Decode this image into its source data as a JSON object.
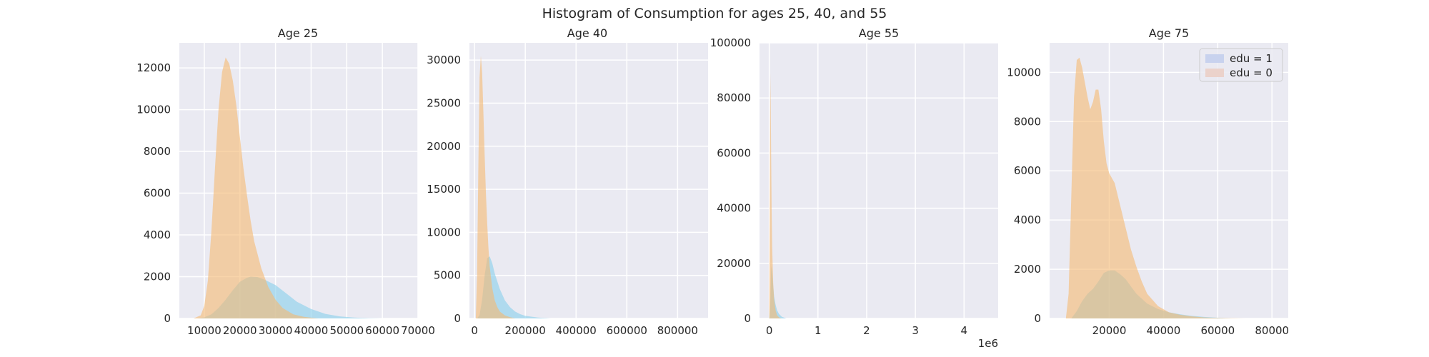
{
  "figure": {
    "title": "Histogram of Consumption for ages 25, 40, and 55"
  },
  "chart_data": [
    {
      "type": "area",
      "title": "Age 25",
      "xlim": [
        3000,
        70000
      ],
      "ylim": [
        0,
        13200
      ],
      "xticks": [
        10000,
        20000,
        30000,
        40000,
        50000,
        60000,
        70000
      ],
      "xtick_labels": [
        "10000",
        "20000",
        "30000",
        "40000",
        "50000",
        "60000",
        "70000"
      ],
      "yticks": [
        0,
        2000,
        4000,
        6000,
        8000,
        10000,
        12000
      ],
      "ytick_labels": [
        "0",
        "2000",
        "4000",
        "6000",
        "8000",
        "10000",
        "12000"
      ],
      "series": [
        {
          "name": "edu = 1",
          "color": "#87ceeb",
          "x": [
            8000,
            10000,
            12000,
            14000,
            16000,
            18000,
            20000,
            22000,
            23000,
            25000,
            27000,
            30000,
            33000,
            36000,
            40000,
            44000,
            48000,
            52000,
            56000,
            60000
          ],
          "y": [
            0,
            50,
            200,
            500,
            900,
            1350,
            1750,
            1950,
            2000,
            1980,
            1850,
            1600,
            1200,
            800,
            450,
            220,
            100,
            40,
            15,
            0
          ]
        },
        {
          "name": "edu = 0",
          "color": "#f5b971",
          "x": [
            7000,
            9000,
            10000,
            11000,
            12000,
            13000,
            14000,
            15000,
            16000,
            17000,
            18000,
            19000,
            20000,
            21000,
            22000,
            23000,
            24000,
            26000,
            28000,
            30000,
            32000,
            35000,
            38000,
            42000
          ],
          "y": [
            0,
            150,
            600,
            1800,
            4200,
            7200,
            10000,
            11800,
            12500,
            12200,
            11400,
            10200,
            8700,
            7200,
            5900,
            4700,
            3700,
            2400,
            1500,
            900,
            500,
            200,
            80,
            0
          ]
        }
      ]
    },
    {
      "type": "area",
      "title": "Age 40",
      "xlim": [
        -20000,
        920000
      ],
      "ylim": [
        0,
        32000
      ],
      "xticks": [
        0,
        200000,
        400000,
        600000,
        800000
      ],
      "xtick_labels": [
        "0",
        "200000",
        "400000",
        "600000",
        "800000"
      ],
      "yticks": [
        0,
        5000,
        10000,
        15000,
        20000,
        25000,
        30000
      ],
      "ytick_labels": [
        "0",
        "5000",
        "10000",
        "15000",
        "20000",
        "25000",
        "30000"
      ],
      "series": [
        {
          "name": "edu = 1",
          "color": "#87ceeb",
          "x": [
            10000,
            20000,
            30000,
            40000,
            50000,
            60000,
            70000,
            80000,
            100000,
            120000,
            140000,
            160000,
            180000,
            200000,
            250000,
            300000
          ],
          "y": [
            0,
            400,
            2200,
            5000,
            7000,
            7200,
            6400,
            5200,
            3400,
            2100,
            1300,
            800,
            500,
            300,
            100,
            0
          ]
        },
        {
          "name": "edu = 0",
          "color": "#f5b971",
          "x": [
            5000,
            10000,
            15000,
            20000,
            25000,
            30000,
            35000,
            40000,
            45000,
            50000,
            55000,
            60000,
            70000,
            80000,
            90000,
            100000,
            120000,
            140000,
            160000
          ],
          "y": [
            0,
            5000,
            17000,
            28000,
            30500,
            28500,
            24000,
            19000,
            14500,
            11000,
            8200,
            6000,
            3500,
            2100,
            1300,
            800,
            350,
            150,
            0
          ]
        }
      ]
    },
    {
      "type": "area",
      "title": "Age 55",
      "xlim": [
        -200000,
        4700000
      ],
      "ylim": [
        0,
        100000
      ],
      "xticks": [
        0,
        1000000,
        2000000,
        3000000,
        4000000
      ],
      "xtick_labels": [
        "0",
        "1",
        "2",
        "3",
        "4"
      ],
      "x_offset_label": "1e6",
      "yticks": [
        0,
        20000,
        40000,
        60000,
        80000,
        100000
      ],
      "ytick_labels": [
        "0",
        "20000",
        "40000",
        "60000",
        "80000",
        "100000"
      ],
      "series": [
        {
          "name": "edu = 1",
          "color": "#87ceeb",
          "x": [
            0,
            20000,
            40000,
            60000,
            80000,
            100000,
            130000,
            160000,
            200000,
            260000,
            350000
          ],
          "y": [
            0,
            5000,
            19000,
            17000,
            12000,
            8000,
            5000,
            3000,
            1600,
            600,
            0
          ]
        },
        {
          "name": "edu = 0",
          "color": "#f5b971",
          "x": [
            0,
            10000,
            20000,
            30000,
            40000,
            50000,
            60000,
            80000,
            100000,
            130000,
            160000,
            200000,
            250000
          ],
          "y": [
            0,
            40000,
            89000,
            78000,
            55000,
            38000,
            26000,
            13000,
            7000,
            3000,
            1200,
            400,
            0
          ]
        }
      ]
    },
    {
      "type": "area",
      "title": "Age 75",
      "xlim": [
        -2000,
        86000
      ],
      "ylim": [
        0,
        11200
      ],
      "xticks": [
        20000,
        40000,
        60000,
        80000
      ],
      "xtick_labels": [
        "20000",
        "40000",
        "60000",
        "80000"
      ],
      "yticks": [
        0,
        2000,
        4000,
        6000,
        8000,
        10000
      ],
      "ytick_labels": [
        "0",
        "2000",
        "4000",
        "6000",
        "8000",
        "10000"
      ],
      "legend": {
        "position": "top-right",
        "entries": [
          {
            "label": "edu = 1",
            "color": "#c8d2ee"
          },
          {
            "label": "edu = 0",
            "color": "#ebd2cb"
          }
        ]
      },
      "series": [
        {
          "name": "edu = 1",
          "color": "#87ceeb",
          "x": [
            6000,
            8000,
            10000,
            12000,
            14000,
            16000,
            18000,
            20000,
            22000,
            24000,
            26000,
            28000,
            30000,
            34000,
            38000,
            42000,
            46000,
            50000,
            55000,
            60000,
            65000
          ],
          "y": [
            0,
            300,
            700,
            1000,
            1200,
            1500,
            1850,
            1950,
            1950,
            1800,
            1600,
            1300,
            1000,
            600,
            380,
            250,
            170,
            110,
            60,
            30,
            0
          ]
        },
        {
          "name": "edu = 0",
          "color": "#f5b971",
          "x": [
            4000,
            5000,
            6000,
            7000,
            8000,
            9000,
            10000,
            11000,
            12000,
            13000,
            14000,
            15000,
            16000,
            17000,
            18000,
            19000,
            20000,
            21000,
            22000,
            24000,
            26000,
            28000,
            30000,
            32000,
            34000,
            38000,
            42000,
            46000,
            50000,
            55000,
            60000,
            70000
          ],
          "y": [
            0,
            1000,
            5000,
            9000,
            10500,
            10600,
            10200,
            9600,
            9000,
            8500,
            8800,
            9300,
            9300,
            8500,
            7200,
            6300,
            5900,
            5700,
            5500,
            4600,
            3700,
            2800,
            2100,
            1500,
            1000,
            500,
            250,
            150,
            90,
            40,
            20,
            0
          ]
        }
      ]
    }
  ]
}
